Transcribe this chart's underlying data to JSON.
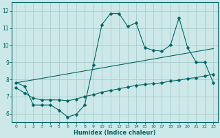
{
  "title": "",
  "xlabel": "Humidex (Indice chaleur)",
  "bg_color": "#cce8e8",
  "grid_color": "#aacccc",
  "line_color": "#006666",
  "xlim": [
    -0.5,
    23.5
  ],
  "ylim": [
    5.5,
    12.5
  ],
  "yticks": [
    6,
    7,
    8,
    9,
    10,
    11,
    12
  ],
  "xticks": [
    0,
    1,
    2,
    3,
    4,
    5,
    6,
    7,
    8,
    9,
    10,
    11,
    12,
    13,
    14,
    15,
    16,
    17,
    18,
    19,
    20,
    21,
    22,
    23
  ],
  "line1_x": [
    0,
    1,
    2,
    3,
    4,
    5,
    6,
    7,
    8,
    9,
    10,
    11,
    12,
    13,
    14,
    15,
    16,
    17,
    18,
    19,
    20,
    21,
    22,
    23
  ],
  "line1_y": [
    7.8,
    7.6,
    6.5,
    6.5,
    6.5,
    6.2,
    5.8,
    5.95,
    6.5,
    8.85,
    11.2,
    11.85,
    11.85,
    11.1,
    11.3,
    9.85,
    9.7,
    9.65,
    10.0,
    11.6,
    9.85,
    9.0,
    9.0,
    7.8
  ],
  "line2_x": [
    0,
    1,
    2,
    3,
    4,
    5,
    6,
    7,
    8,
    9,
    10,
    11,
    12,
    13,
    14,
    15,
    16,
    17,
    18,
    19,
    20,
    21,
    22,
    23
  ],
  "line2_y": [
    7.5,
    7.2,
    6.9,
    6.8,
    6.8,
    6.8,
    6.75,
    6.85,
    7.0,
    7.1,
    7.25,
    7.35,
    7.45,
    7.55,
    7.65,
    7.7,
    7.75,
    7.8,
    7.9,
    7.95,
    8.05,
    8.1,
    8.2,
    8.3
  ],
  "line3_x": [
    0,
    23
  ],
  "line3_y": [
    7.8,
    9.8
  ],
  "marker_size": 2.5
}
